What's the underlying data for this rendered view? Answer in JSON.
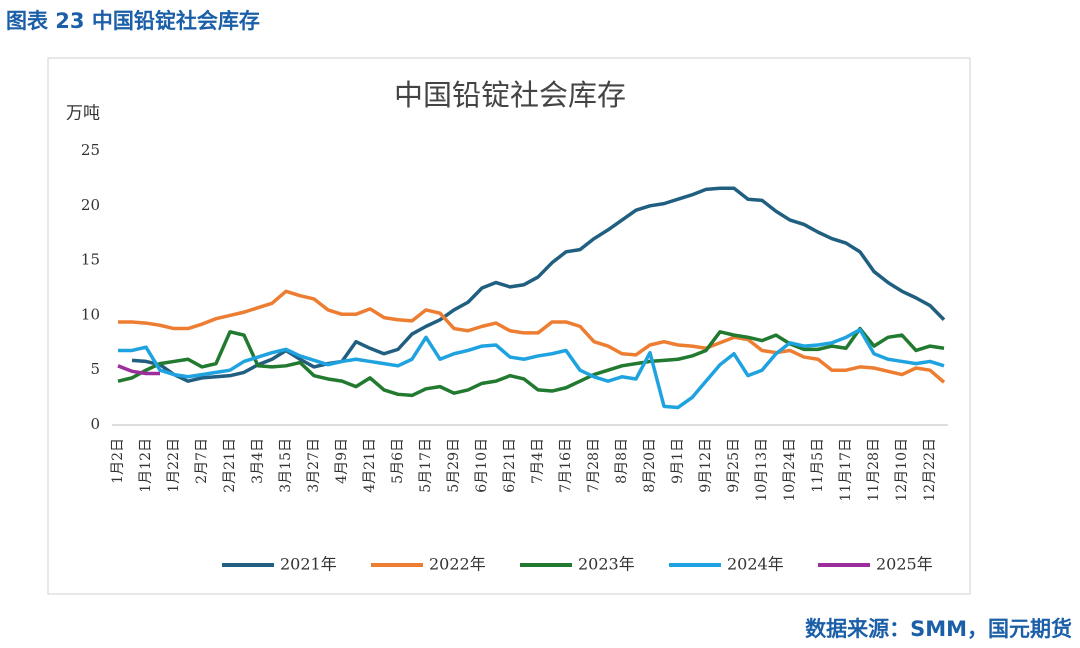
{
  "header": "图表 23 中国铅锭社会库存",
  "source": "数据来源：SMM，国元期货",
  "chart_data": {
    "type": "line",
    "title": "中国铅锭社会库存",
    "y_label": "万吨",
    "legend": "bottom",
    "categories": [
      "1月2日",
      null,
      "1月12日",
      null,
      "1月22日",
      null,
      "2月7日",
      null,
      "2月21日",
      null,
      "3月4日",
      null,
      "3月15日",
      null,
      "3月27日",
      null,
      "4月9日",
      null,
      "4月21日",
      null,
      "5月6日",
      null,
      "5月17日",
      null,
      "5月29日",
      null,
      "6月10日",
      null,
      "6月21日",
      null,
      "7月4日",
      null,
      "7月16日",
      null,
      "7月28日",
      null,
      "8月8日",
      null,
      "8月20日",
      null,
      "9月1日",
      null,
      "9月12日",
      null,
      "9月25日",
      null,
      "10月13日",
      null,
      "10月24日",
      null,
      "11月5日",
      null,
      "11月17日",
      null,
      "11月28日",
      null,
      "12月10日",
      null,
      "12月22日",
      null
    ],
    "ylim": [
      0,
      25
    ],
    "yticks": [
      0,
      5,
      10,
      15,
      20,
      25
    ],
    "series": [
      {
        "name": "2021年",
        "color": "#215f80",
        "values": [
          null,
          5.9,
          5.8,
          5.5,
          4.6,
          4.0,
          4.3,
          4.4,
          4.5,
          4.8,
          5.5,
          6.0,
          6.8,
          6.0,
          5.3,
          5.6,
          5.8,
          7.6,
          7.0,
          6.5,
          6.9,
          8.3,
          9.0,
          9.6,
          10.5,
          11.2,
          12.5,
          13.0,
          12.6,
          12.8,
          13.5,
          14.8,
          15.8,
          16.0,
          17.0,
          17.8,
          18.7,
          19.6,
          20.0,
          20.2,
          20.6,
          21.0,
          21.5,
          21.6,
          21.6,
          20.6,
          20.5,
          19.5,
          18.7,
          18.3,
          17.6,
          17.0,
          16.6,
          15.8,
          14.0,
          13.0,
          12.2,
          11.6,
          10.9,
          9.6
        ]
      },
      {
        "name": "2022年",
        "color": "#ed7d31",
        "values": [
          9.4,
          9.4,
          9.3,
          9.1,
          8.8,
          8.8,
          9.2,
          9.7,
          10.0,
          10.3,
          10.7,
          11.1,
          12.2,
          11.8,
          11.5,
          10.5,
          10.1,
          10.1,
          10.6,
          9.8,
          9.6,
          9.5,
          10.5,
          10.2,
          8.8,
          8.6,
          9.0,
          9.3,
          8.6,
          8.4,
          8.4,
          9.4,
          9.4,
          9.0,
          7.6,
          7.2,
          6.5,
          6.4,
          7.3,
          7.6,
          7.3,
          7.2,
          7.0,
          7.5,
          8.0,
          7.8,
          6.8,
          6.6,
          6.8,
          6.2,
          6.0,
          5.0,
          5.0,
          5.3,
          5.2,
          4.9,
          4.6,
          5.2,
          5.0,
          3.9
        ]
      },
      {
        "name": "2023年",
        "color": "#217a2f",
        "values": [
          4.0,
          4.3,
          5.0,
          5.6,
          5.8,
          6.0,
          5.3,
          5.6,
          8.5,
          8.2,
          5.4,
          5.3,
          5.4,
          5.7,
          4.5,
          4.2,
          4.0,
          3.5,
          4.3,
          3.2,
          2.8,
          2.7,
          3.3,
          3.5,
          2.9,
          3.2,
          3.8,
          4.0,
          4.5,
          4.2,
          3.2,
          3.1,
          3.4,
          4.0,
          4.6,
          5.0,
          5.4,
          5.6,
          5.8,
          5.9,
          6.0,
          6.3,
          6.8,
          8.5,
          8.2,
          8.0,
          7.7,
          8.2,
          7.4,
          6.9,
          6.9,
          7.2,
          7.0,
          8.8,
          7.2,
          8.0,
          8.2,
          6.8,
          7.2,
          7.0
        ]
      },
      {
        "name": "2024年",
        "color": "#1fa3e0",
        "values": [
          6.8,
          6.8,
          7.1,
          5.0,
          4.6,
          4.4,
          4.6,
          4.8,
          5.0,
          5.8,
          6.2,
          6.6,
          6.9,
          6.3,
          5.9,
          5.5,
          5.8,
          6.0,
          5.8,
          5.6,
          5.4,
          6.0,
          8.0,
          6.0,
          6.5,
          6.8,
          7.2,
          7.3,
          6.2,
          6.0,
          6.3,
          6.5,
          6.8,
          5.0,
          4.4,
          4.0,
          4.4,
          4.2,
          6.6,
          1.7,
          1.6,
          2.5,
          4.0,
          5.5,
          6.5,
          4.5,
          5.0,
          6.5,
          7.5,
          7.2,
          7.3,
          7.5,
          8.0,
          8.7,
          6.5,
          6.0,
          5.8,
          5.6,
          5.8,
          5.4
        ]
      },
      {
        "name": "2025年",
        "color": "#9c2d9c",
        "values": [
          5.4,
          4.9,
          4.7,
          4.7,
          null,
          null,
          null,
          null,
          null,
          null,
          null,
          null,
          null,
          null,
          null,
          null,
          null,
          null,
          null,
          null,
          null,
          null,
          null,
          null,
          null,
          null,
          null,
          null,
          null,
          null,
          null,
          null,
          null,
          null,
          null,
          null,
          null,
          null,
          null,
          null,
          null,
          null,
          null,
          null,
          null,
          null,
          null,
          null,
          null,
          null,
          null,
          null,
          null,
          null,
          null,
          null,
          null,
          null,
          null,
          null
        ]
      }
    ]
  }
}
